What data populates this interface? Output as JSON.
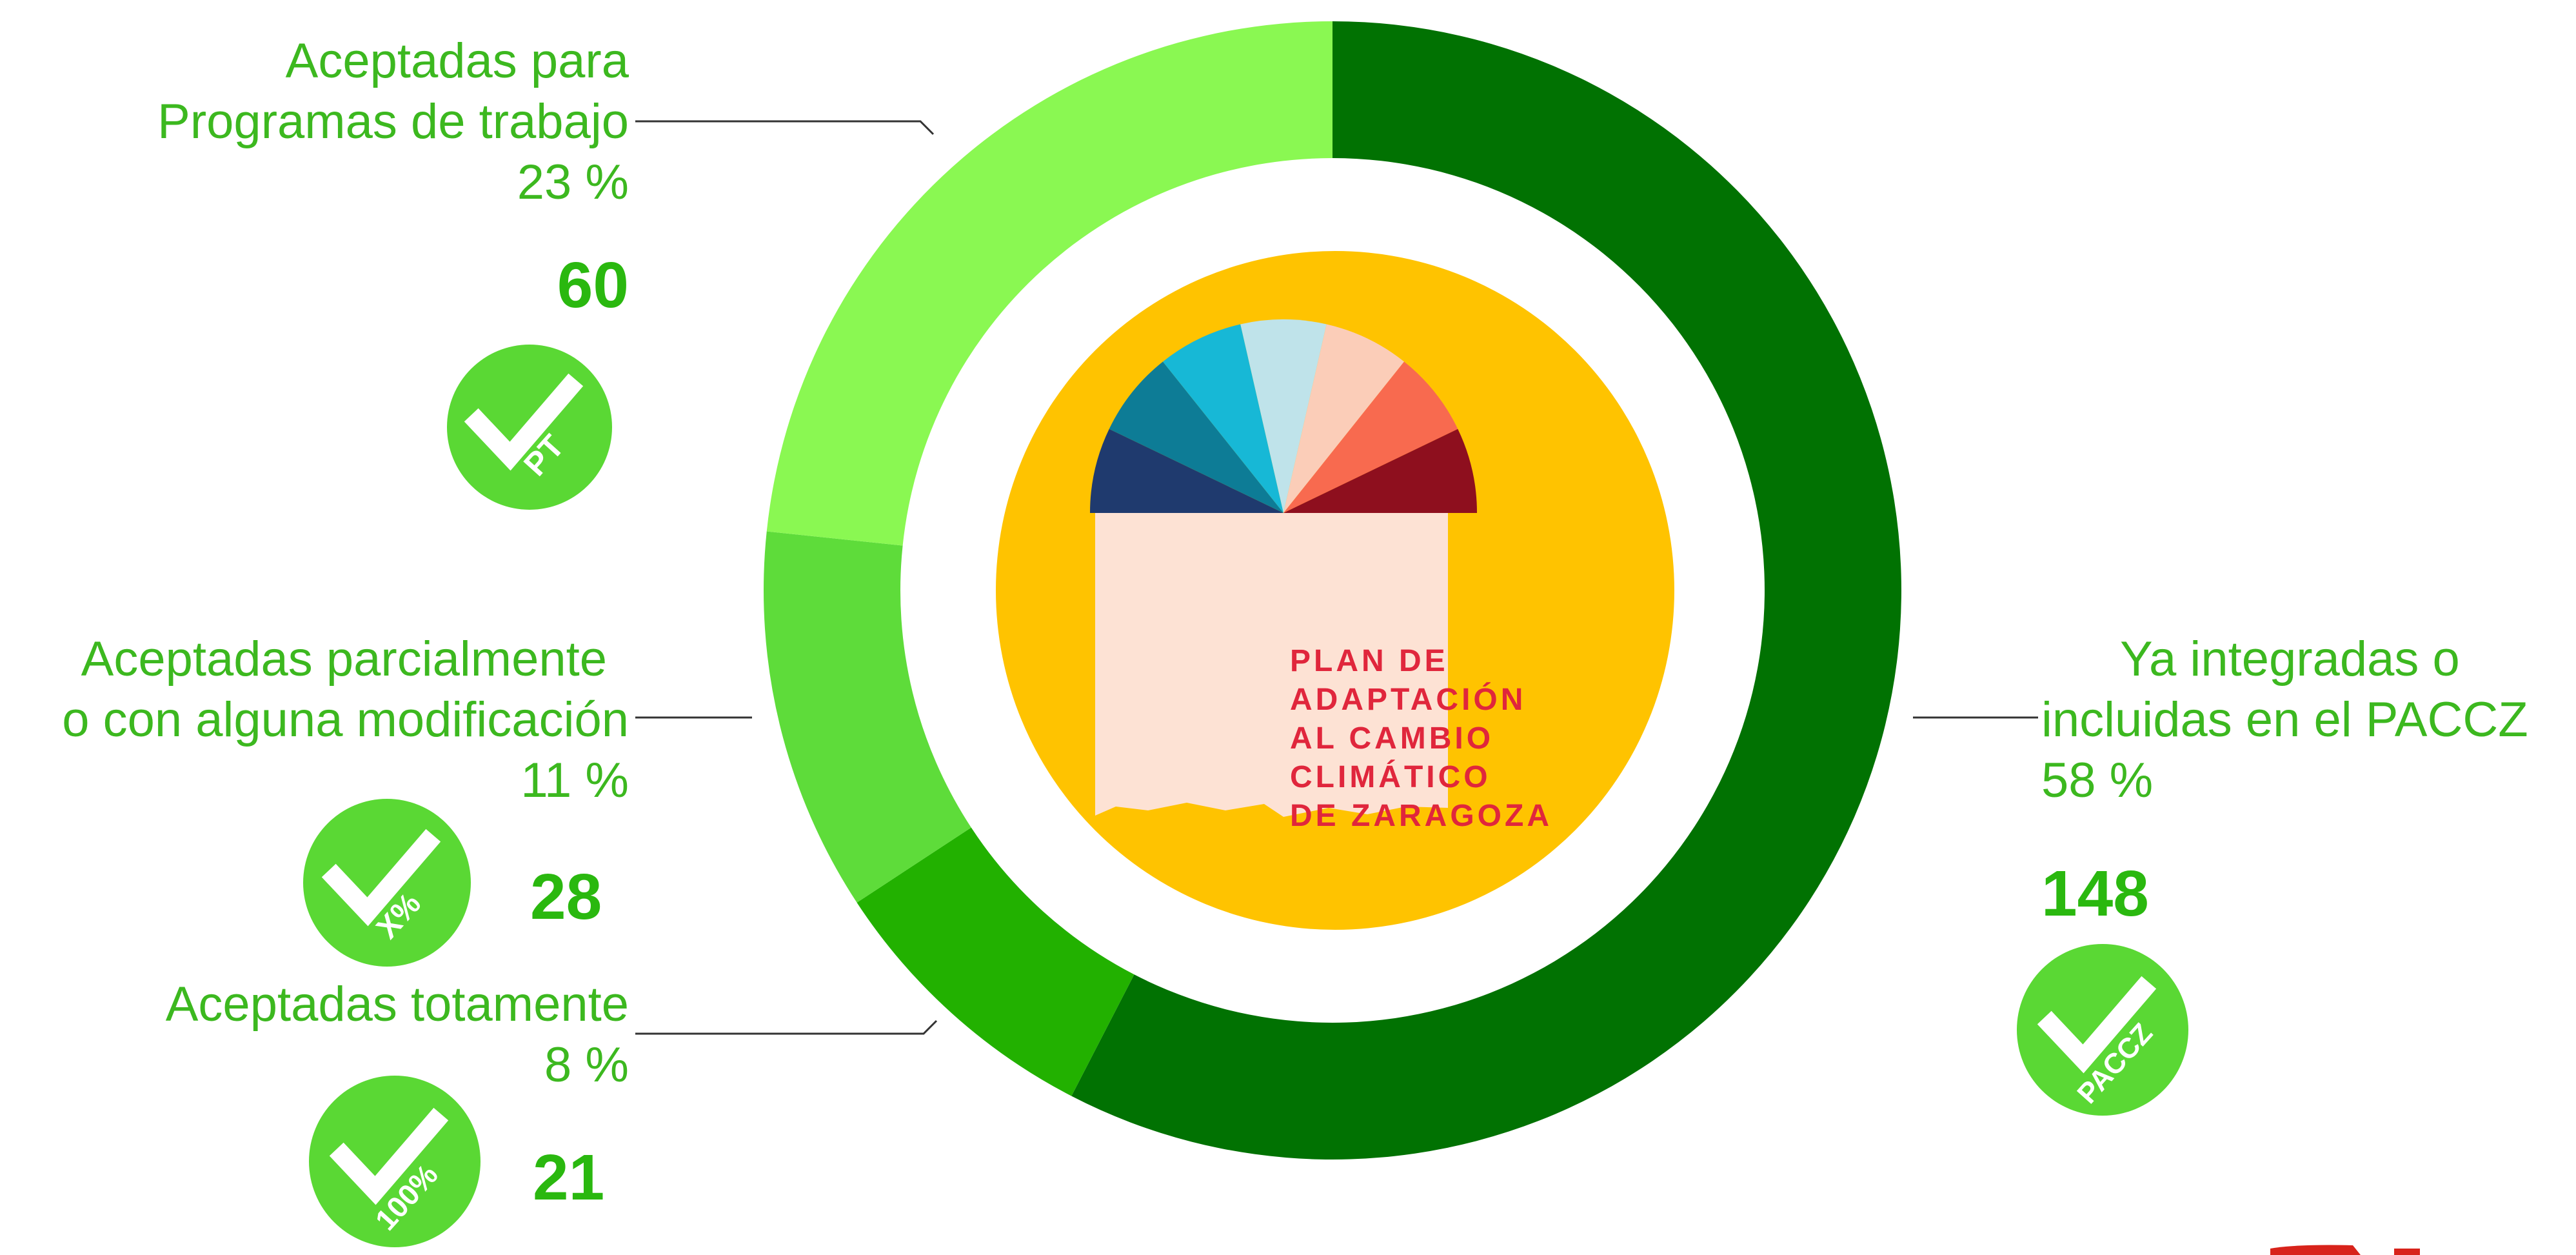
{
  "chart_data": {
    "type": "pie",
    "variant": "donut",
    "slices": [
      {
        "label_lines": [
          "Ya integradas o",
          "incluidas en el PACCZ"
        ],
        "pct_text": "58 %",
        "count_text": "148",
        "value": 148,
        "percent": 58,
        "color": "#017202",
        "badge": "PACCZ"
      },
      {
        "label_lines": [
          "Aceptadas totamente"
        ],
        "pct_text": "8 %",
        "count_text": "21",
        "value": 21,
        "percent": 8,
        "color": "#22b100",
        "badge": "100%"
      },
      {
        "label_lines": [
          "Aceptadas parcialmente",
          "o con alguna modificación"
        ],
        "pct_text": "11 %",
        "count_text": "28",
        "value": 28,
        "percent": 11,
        "color": "#5edc3a",
        "badge": "X%"
      },
      {
        "label_lines": [
          "Aceptadas para",
          "Programas de trabajo"
        ],
        "pct_text": "23 %",
        "count_text": "60",
        "value": 60,
        "percent": 23,
        "color": "#8af852",
        "badge": "PT"
      }
    ],
    "legend": "none"
  },
  "logo": {
    "text_lines": [
      "PLAN DE",
      "ADAPTACIÓN",
      "AL CAMBIO",
      "CLIMÁTICO",
      "DE ZARAGOZA"
    ],
    "background": "#ffc300",
    "text_color": "#e0263c"
  },
  "colors": {
    "label_text": "#3cb81f",
    "count_text": "#2ab80f",
    "badge_fill": "#5ad834",
    "leader_line": "#333333"
  }
}
